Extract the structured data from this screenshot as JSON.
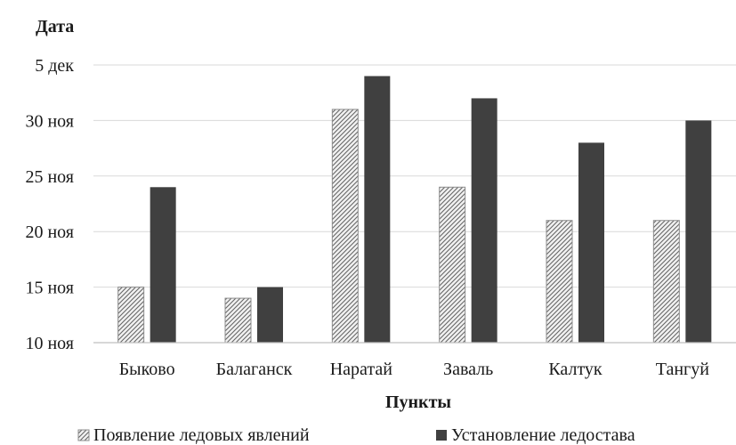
{
  "chart_data": {
    "type": "bar",
    "title": "",
    "xlabel": "Пункты",
    "ylabel": "Дата",
    "categories": [
      "Быково",
      "Балаганск",
      "Наратай",
      "Заваль",
      "Калтук",
      "Тангуй"
    ],
    "y_ticks": [
      "10 ноя",
      "15 ноя",
      "20 ноя",
      "25 ноя",
      "30 ноя",
      "5 дек"
    ],
    "y_tick_dates": [
      "11-10",
      "11-15",
      "11-20",
      "11-25",
      "11-30",
      "12-05"
    ],
    "series": [
      {
        "name": "Появление ледовых явлений",
        "values": [
          "11-15",
          "11-14",
          "11-31",
          "11-24",
          "11-21",
          "11-21"
        ],
        "color": "#d9d9d9",
        "pattern": "diagonal-hatch"
      },
      {
        "name": "Установление ледостава",
        "values": [
          "11-24",
          "11-15",
          "12-04",
          "12-02",
          "11-28",
          "11-30"
        ],
        "color": "#404040",
        "pattern": "solid"
      }
    ],
    "ylim": [
      "11-10",
      "12-05"
    ],
    "grid": true,
    "legend": "bottom"
  }
}
